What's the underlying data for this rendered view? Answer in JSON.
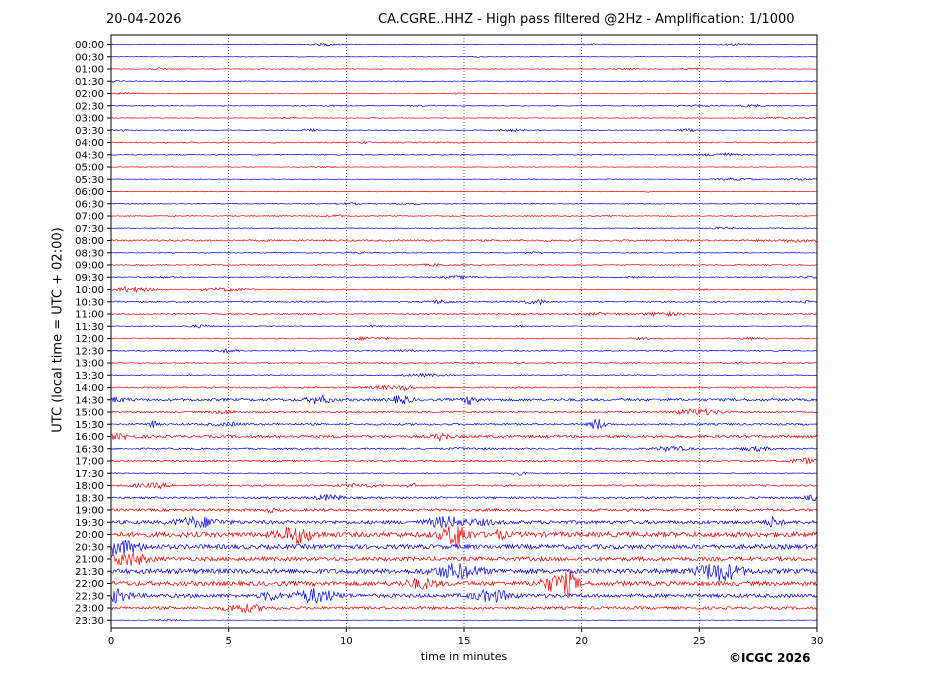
{
  "header": {
    "date": "20-04-2026",
    "title": "CA.CGRE..HHZ - High pass filtered @2Hz - Amplification: 1/1000"
  },
  "footer": {
    "copyright": "©ICGC 2026"
  },
  "chart_data": {
    "type": "line",
    "title": "CA.CGRE..HHZ - High pass filtered @2Hz - Amplification: 1/1000",
    "xlabel": "time in minutes",
    "ylabel": "UTC (local time = UTC + 02:00)",
    "xlim": [
      0,
      30
    ],
    "xticks": [
      0,
      5,
      10,
      15,
      20,
      25,
      30
    ],
    "xgrid": "dotted vertical lines at 5-minute intervals",
    "trace_colors": [
      "#0000ff",
      "#ff0000"
    ],
    "rows": [
      {
        "label": "00:00",
        "color": "#0000ff",
        "amplitude": 0.3
      },
      {
        "label": "00:30",
        "color": "#0000ff",
        "amplitude": 0.3
      },
      {
        "label": "01:00",
        "color": "#ff0000",
        "amplitude": 0.3
      },
      {
        "label": "01:30",
        "color": "#0000ff",
        "amplitude": 0.4
      },
      {
        "label": "02:00",
        "color": "#ff0000",
        "amplitude": 0.4
      },
      {
        "label": "02:30",
        "color": "#0000ff",
        "amplitude": 0.4
      },
      {
        "label": "03:00",
        "color": "#ff0000",
        "amplitude": 0.3
      },
      {
        "label": "03:30",
        "color": "#0000ff",
        "amplitude": 0.4
      },
      {
        "label": "04:00",
        "color": "#ff0000",
        "amplitude": 0.6
      },
      {
        "label": "04:30",
        "color": "#0000ff",
        "amplitude": 0.5
      },
      {
        "label": "05:00",
        "color": "#ff0000",
        "amplitude": 0.3
      },
      {
        "label": "05:30",
        "color": "#0000ff",
        "amplitude": 0.3
      },
      {
        "label": "06:00",
        "color": "#ff0000",
        "amplitude": 0.3
      },
      {
        "label": "06:30",
        "color": "#0000ff",
        "amplitude": 0.4
      },
      {
        "label": "07:00",
        "color": "#ff0000",
        "amplitude": 0.5
      },
      {
        "label": "07:30",
        "color": "#0000ff",
        "amplitude": 0.4
      },
      {
        "label": "08:00",
        "color": "#ff0000",
        "amplitude": 0.9
      },
      {
        "label": "08:30",
        "color": "#0000ff",
        "amplitude": 0.4
      },
      {
        "label": "09:00",
        "color": "#ff0000",
        "amplitude": 0.5
      },
      {
        "label": "09:30",
        "color": "#0000ff",
        "amplitude": 0.5
      },
      {
        "label": "10:00",
        "color": "#ff0000",
        "amplitude": 0.5
      },
      {
        "label": "10:30",
        "color": "#0000ff",
        "amplitude": 0.7
      },
      {
        "label": "11:00",
        "color": "#ff0000",
        "amplitude": 0.6
      },
      {
        "label": "11:30",
        "color": "#0000ff",
        "amplitude": 0.4
      },
      {
        "label": "12:00",
        "color": "#ff0000",
        "amplitude": 0.5
      },
      {
        "label": "12:30",
        "color": "#0000ff",
        "amplitude": 0.6
      },
      {
        "label": "13:00",
        "color": "#ff0000",
        "amplitude": 0.5
      },
      {
        "label": "13:30",
        "color": "#0000ff",
        "amplitude": 0.5
      },
      {
        "label": "14:00",
        "color": "#ff0000",
        "amplitude": 0.7
      },
      {
        "label": "14:30",
        "color": "#0000ff",
        "amplitude": 1.3
      },
      {
        "label": "15:00",
        "color": "#ff0000",
        "amplitude": 0.8
      },
      {
        "label": "15:30",
        "color": "#0000ff",
        "amplitude": 1.0
      },
      {
        "label": "16:00",
        "color": "#ff0000",
        "amplitude": 1.3
      },
      {
        "label": "16:30",
        "color": "#0000ff",
        "amplitude": 0.8
      },
      {
        "label": "17:00",
        "color": "#ff0000",
        "amplitude": 0.8
      },
      {
        "label": "17:30",
        "color": "#0000ff",
        "amplitude": 0.5
      },
      {
        "label": "18:00",
        "color": "#ff0000",
        "amplitude": 0.8
      },
      {
        "label": "18:30",
        "color": "#0000ff",
        "amplitude": 1.0
      },
      {
        "label": "19:00",
        "color": "#ff0000",
        "amplitude": 1.3
      },
      {
        "label": "19:30",
        "color": "#0000ff",
        "amplitude": 1.8
      },
      {
        "label": "20:00",
        "color": "#ff0000",
        "amplitude": 2.6
      },
      {
        "label": "20:30",
        "color": "#0000ff",
        "amplitude": 2.3
      },
      {
        "label": "21:00",
        "color": "#ff0000",
        "amplitude": 2.0
      },
      {
        "label": "21:30",
        "color": "#0000ff",
        "amplitude": 2.5
      },
      {
        "label": "22:00",
        "color": "#ff0000",
        "amplitude": 2.3
      },
      {
        "label": "22:30",
        "color": "#0000ff",
        "amplitude": 1.9
      },
      {
        "label": "23:00",
        "color": "#ff0000",
        "amplitude": 1.4
      },
      {
        "label": "23:30",
        "color": "#0000ff",
        "amplitude": 0.2
      }
    ]
  }
}
